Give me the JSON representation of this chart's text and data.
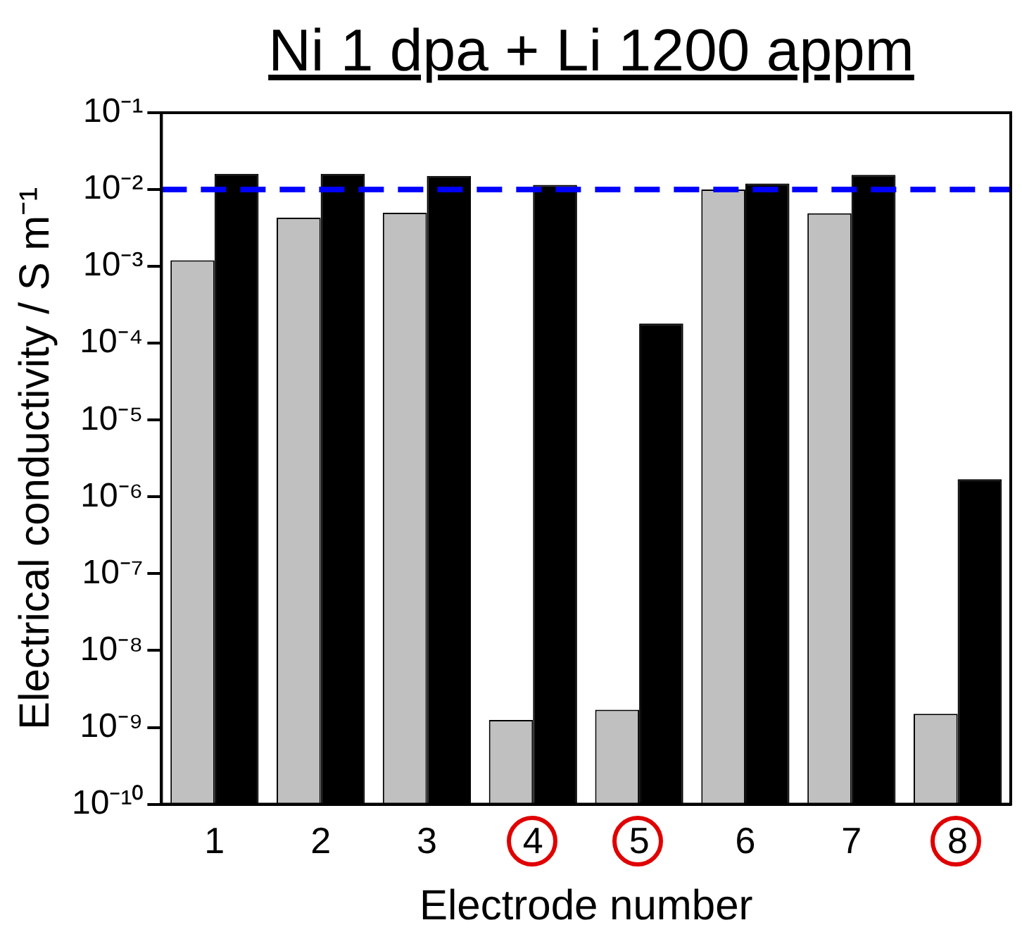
{
  "chart_data": {
    "type": "bar",
    "title": "Ni 1 dpa + Li 1200 appm",
    "xlabel": "Electrode number",
    "ylabel": "Electrical conductivity / S m⁻¹",
    "categories": [
      "1",
      "2",
      "3",
      "4",
      "5",
      "6",
      "7",
      "8"
    ],
    "series": [
      {
        "color": "#c0c0c0",
        "values": [
          0.0012,
          0.0043,
          0.005,
          1.25e-09,
          1.7e-09,
          0.01,
          0.0049,
          1.5e-09
        ]
      },
      {
        "color": "#000000",
        "values": [
          0.016,
          0.016,
          0.015,
          0.0115,
          0.00018,
          0.012,
          0.0155,
          1.7e-06
        ]
      }
    ],
    "log": "y",
    "ylim": [
      1e-10,
      0.1
    ],
    "yticks": [
      {
        "value": 1e-10,
        "label": "10⁻¹⁰"
      },
      {
        "value": 1e-09,
        "label": "10⁻⁹"
      },
      {
        "value": 1e-08,
        "label": "10⁻⁸"
      },
      {
        "value": 1e-07,
        "label": "10⁻⁷"
      },
      {
        "value": 1e-06,
        "label": "10⁻⁶"
      },
      {
        "value": 1e-05,
        "label": "10⁻⁵"
      },
      {
        "value": 0.0001,
        "label": "10⁻⁴"
      },
      {
        "value": 0.001,
        "label": "10⁻³"
      },
      {
        "value": 0.01,
        "label": "10⁻²"
      },
      {
        "value": 0.1,
        "label": "10⁻¹"
      }
    ],
    "ref_lines": [
      {
        "axis": "y",
        "value": 0.01,
        "color": "#0000ff",
        "line_style": "dashed"
      }
    ],
    "grid": false,
    "legend": false
  }
}
